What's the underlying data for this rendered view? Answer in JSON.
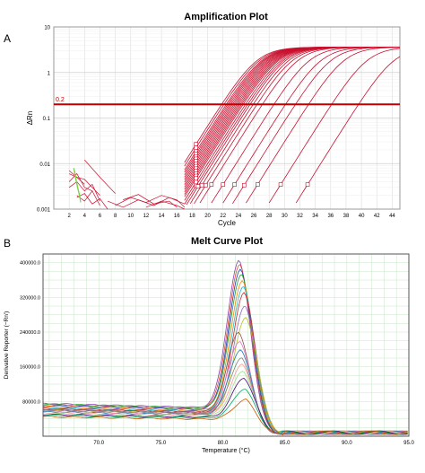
{
  "panel_a": {
    "letter": "A"
  },
  "panel_b": {
    "letter": "B"
  },
  "colors": {
    "amp_curve": "#c8102e",
    "threshold": "#c00000",
    "noise_green": "#7fd14a",
    "melt_grid": "#c8e6c8",
    "melt_palette": [
      "#8e44ad",
      "#e74c3c",
      "#1f3fbf",
      "#2ca02c",
      "#ff7f0e",
      "#17becf",
      "#d62728",
      "#9467bd",
      "#bcbd22",
      "#8c564b",
      "#e377c2",
      "#1f77b4",
      "#7f7f7f",
      "#ff9896",
      "#98df8a",
      "#4b0082",
      "#00aa66",
      "#cc5500"
    ]
  },
  "chart_data": [
    {
      "type": "line",
      "title": "Amplification Plot",
      "xlabel": "Cycle",
      "ylabel": "ΔRn",
      "y_scale": "log",
      "xlim": [
        0,
        45
      ],
      "ylim": [
        0.001,
        10
      ],
      "x_ticks": [
        2,
        4,
        6,
        8,
        10,
        12,
        14,
        16,
        18,
        20,
        22,
        24,
        26,
        28,
        30,
        32,
        34,
        36,
        38,
        40,
        42,
        44
      ],
      "y_ticks": [
        {
          "value": 10,
          "label": "10"
        },
        {
          "value": 1,
          "label": "1"
        },
        {
          "value": 0.1,
          "label": "0.1"
        },
        {
          "value": 0.01,
          "label": "0.01"
        },
        {
          "value": 0.001,
          "label": "0.001"
        }
      ],
      "grid": true,
      "threshold": {
        "value": 0.2,
        "label": "0.2"
      },
      "plateau": 3.6,
      "ct_midpoints": [
        23.2,
        23.5,
        23.8,
        24.0,
        24.2,
        24.4,
        24.6,
        24.8,
        25.0,
        25.2,
        25.4,
        25.6,
        25.8,
        26.0,
        26.3,
        26.6,
        26.9,
        27.3,
        27.8,
        28.5,
        30.0,
        31.5,
        32.8,
        34.5,
        37.5,
        41.0
      ],
      "noise_curves": [
        {
          "x": [
            2,
            3,
            4,
            5,
            6
          ],
          "y": [
            0.006,
            0.005,
            0.0045,
            0.003,
            0.002
          ]
        },
        {
          "x": [
            2,
            3,
            4,
            5
          ],
          "y": [
            0.004,
            0.006,
            0.003,
            0.0025
          ]
        },
        {
          "x": [
            2,
            3,
            4,
            5,
            6
          ],
          "y": [
            0.003,
            0.004,
            0.0025,
            0.0035,
            0.0015
          ]
        },
        {
          "x": [
            2,
            3,
            4
          ],
          "y": [
            0.007,
            0.005,
            0.0035
          ]
        },
        {
          "x": [
            3,
            4,
            5,
            6
          ],
          "y": [
            0.002,
            0.0015,
            0.0025,
            0.0012
          ]
        },
        {
          "x": [
            8,
            10,
            12,
            14,
            16,
            17
          ],
          "y": [
            0.0012,
            0.0018,
            0.0014,
            0.002,
            0.0016,
            0.0011
          ]
        },
        {
          "x": [
            7,
            9,
            11,
            13,
            15,
            17
          ],
          "y": [
            0.0015,
            0.0011,
            0.0016,
            0.0012,
            0.0018,
            0.0013
          ]
        },
        {
          "x": [
            9,
            11,
            13,
            15,
            16
          ],
          "y": [
            0.0016,
            0.0021,
            0.0013,
            0.0015,
            0.0011
          ]
        },
        {
          "x": [
            4,
            6,
            8
          ],
          "y": [
            0.012,
            0.005,
            0.0022
          ]
        },
        {
          "x": [
            3,
            4,
            5,
            6,
            7
          ],
          "y": [
            0.0018,
            0.0022,
            0.0013,
            0.0017,
            0.001
          ]
        },
        {
          "x": [
            12,
            14,
            16,
            17
          ],
          "y": [
            0.0011,
            0.0015,
            0.0012,
            0.001
          ]
        }
      ],
      "green_curves": [
        {
          "x": [
            2.6,
            2.8,
            3.0,
            3.2,
            3.4
          ],
          "y": [
            0.008,
            0.005,
            0.0035,
            0.0025,
            0.0018
          ]
        },
        {
          "x": [
            2.7,
            2.9,
            3.1,
            3.3,
            3.5
          ],
          "y": [
            0.007,
            0.0045,
            0.003,
            0.0022,
            0.0014
          ]
        }
      ]
    },
    {
      "type": "line",
      "title": "Melt Curve Plot",
      "xlabel": "Temperature (°C)",
      "ylabel": "Derivative Reporter (−Rn')",
      "xlim": [
        65.5,
        95
      ],
      "ylim": [
        0,
        420000
      ],
      "x_ticks": [
        {
          "value": 70,
          "label": "70.0"
        },
        {
          "value": 75,
          "label": "75.0"
        },
        {
          "value": 80,
          "label": "80.0"
        },
        {
          "value": 85,
          "label": "85.0"
        },
        {
          "value": 90,
          "label": "90.0"
        },
        {
          "value": 95,
          "label": "95.0"
        }
      ],
      "y_ticks": [
        {
          "value": 400000,
          "label": "400000.0"
        },
        {
          "value": 320000,
          "label": "320000.0"
        },
        {
          "value": 240000,
          "label": "240000.0"
        },
        {
          "value": 160000,
          "label": "160000.0"
        },
        {
          "value": 80000,
          "label": "80000.0"
        }
      ],
      "grid": true,
      "peak_temperature": 81.6,
      "series": [
        {
          "peak": 405000,
          "base": 75000
        },
        {
          "peak": 395000,
          "base": 72000
        },
        {
          "peak": 385000,
          "base": 70000
        },
        {
          "peak": 375000,
          "base": 74000
        },
        {
          "peak": 360000,
          "base": 68000
        },
        {
          "peak": 345000,
          "base": 66000
        },
        {
          "peak": 330000,
          "base": 64000
        },
        {
          "peak": 300000,
          "base": 62000
        },
        {
          "peak": 275000,
          "base": 60000
        },
        {
          "peak": 240000,
          "base": 62000
        },
        {
          "peak": 220000,
          "base": 58000
        },
        {
          "peak": 200000,
          "base": 56000
        },
        {
          "peak": 180000,
          "base": 60000
        },
        {
          "peak": 165000,
          "base": 54000
        },
        {
          "peak": 150000,
          "base": 52000
        },
        {
          "peak": 135000,
          "base": 50000
        },
        {
          "peak": 110000,
          "base": 48000
        },
        {
          "peak": 85000,
          "base": 45000
        }
      ]
    }
  ]
}
